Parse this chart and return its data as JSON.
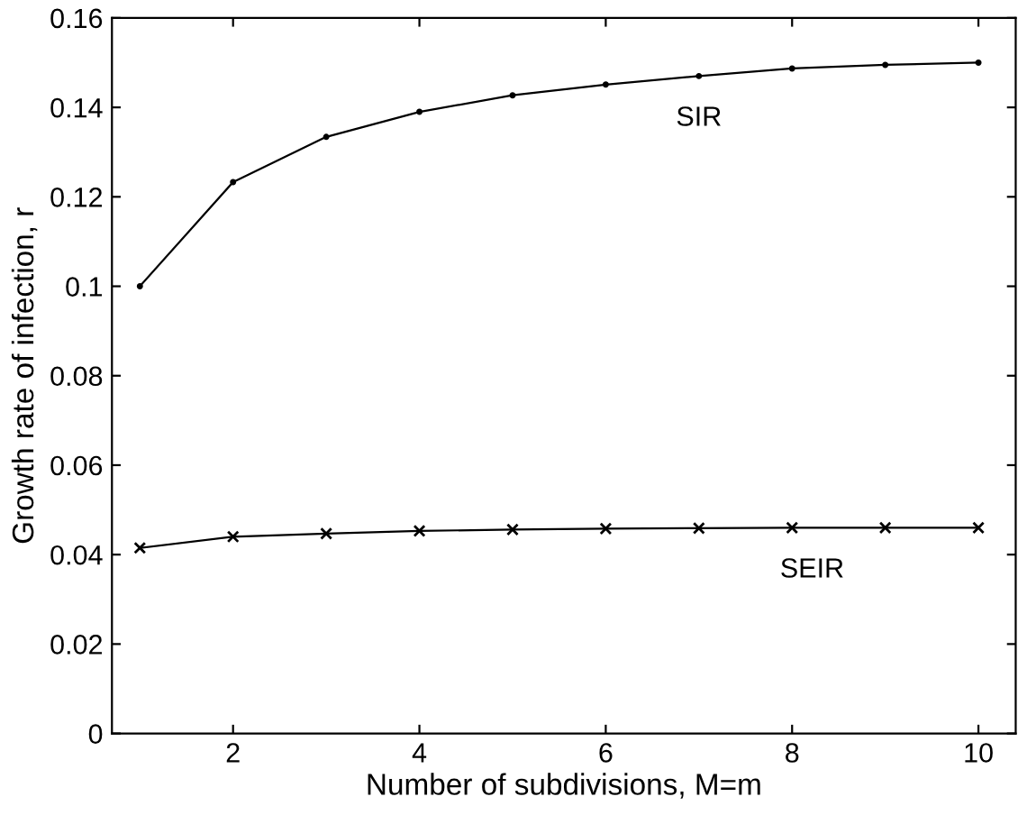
{
  "chart_data": {
    "type": "line",
    "xlabel": "Number of subdivisions, M=m",
    "ylabel": "Growth rate of infection, r",
    "x": [
      1,
      2,
      3,
      4,
      5,
      6,
      7,
      8,
      9,
      10
    ],
    "series": [
      {
        "name": "SIR",
        "color": "#000000",
        "marker": "circle",
        "values": [
          0.1,
          0.1233,
          0.1334,
          0.139,
          0.1427,
          0.1451,
          0.147,
          0.1487,
          0.1495,
          0.15
        ]
      },
      {
        "name": "SEIR",
        "color": "#000000",
        "marker": "cross",
        "values": [
          0.0415,
          0.044,
          0.0447,
          0.0453,
          0.0456,
          0.0458,
          0.0459,
          0.046,
          0.046,
          0.046
        ]
      }
    ],
    "xlim": [
      0.7,
      10.4
    ],
    "xticks": [
      2,
      4,
      6,
      8,
      10
    ],
    "ylim": [
      0,
      0.16
    ],
    "yticks": [
      0,
      0.02,
      0.04,
      0.06,
      0.08,
      0.1,
      0.12,
      0.14,
      0.16
    ],
    "grid": false,
    "legend": false,
    "line_style": "solid"
  }
}
